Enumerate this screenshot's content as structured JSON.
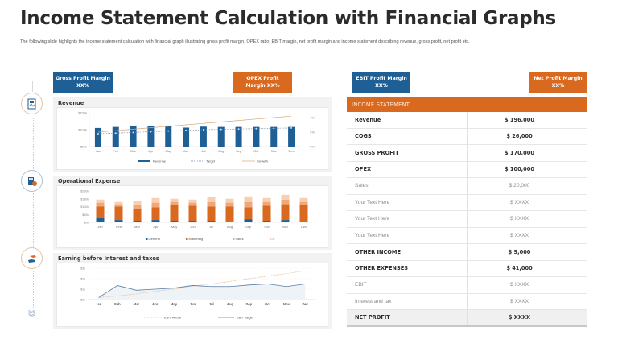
{
  "header": {
    "title": "Income Statement Calculation with Financial Graphs",
    "subtitle": "The following slide highlights the income statement calculation with financial graph illustrating gross profit margin, OPEX ratio, EBIT margin, net profit margin and income statement describing revenue, gross profit, net profit etc."
  },
  "kpis": [
    {
      "line1": "Gross Profit Margin",
      "line2": "XX%",
      "color": "#1e5f96"
    },
    {
      "line1": "OPEX Profit",
      "line2": "Margin XX%",
      "color": "#d9691e"
    },
    {
      "line1": "EBIT Profit Margin",
      "line2": "XX%",
      "color": "#1e5f96"
    },
    {
      "line1": "Net Profit Margin",
      "line2": "XX%",
      "color": "#d9691e"
    }
  ],
  "icons": [
    {
      "name": "document-chart-icon"
    },
    {
      "name": "calculator-coins-icon"
    },
    {
      "name": "hand-money-icon"
    },
    {
      "name": "chevrons-down-icon"
    }
  ],
  "panels": {
    "revenue": {
      "title": "Revenue"
    },
    "opex": {
      "title": "Operational Expense"
    },
    "ebit": {
      "title": "Earning before Interest and taxes"
    }
  },
  "chart_data": [
    {
      "type": "bar",
      "title": "Revenue",
      "categories": [
        "Jan",
        "Feb",
        "Mar",
        "Apr",
        "May",
        "Jun",
        "Jul",
        "Aug",
        "Sep",
        "Oct",
        "Nov",
        "Dec"
      ],
      "y_ticks": [
        "$50k",
        "$100k",
        "$150k"
      ],
      "y2_ticks": [
        "0%",
        "2%",
        "4%"
      ],
      "ylim": [
        50,
        150
      ],
      "y2lim": [
        0,
        4
      ],
      "series": [
        {
          "name": "Revenue",
          "kind": "bar",
          "color": "#1e5f96",
          "values": [
            105,
            108,
            112,
            110,
            112,
            106,
            109,
            108,
            108,
            108,
            108,
            108
          ]
        },
        {
          "name": "Target",
          "kind": "line-dotted",
          "color": "#6b8bb3",
          "values": [
            88,
            90,
            92,
            94,
            96,
            98,
            100,
            101,
            102,
            103,
            104,
            105
          ]
        },
        {
          "name": "Growth",
          "kind": "line",
          "axis": "y2",
          "color": "#d9a57a",
          "values": [
            2.0,
            2.2,
            2.4,
            2.6,
            2.8,
            3.0,
            3.2,
            3.4,
            3.6,
            3.8,
            4.0,
            4.2
          ]
        }
      ],
      "legend": [
        "Revenue",
        "Target",
        "Growth"
      ]
    },
    {
      "type": "bar",
      "stacked": true,
      "title": "Operational Expense",
      "categories": [
        "Jan",
        "Feb",
        "Mar",
        "Apr",
        "May",
        "Jun",
        "Jul",
        "Aug",
        "Sep",
        "Oct",
        "Nov",
        "Dec"
      ],
      "y_ticks": [
        "$0k",
        "$50k",
        "$100k",
        "$150k",
        "$200k"
      ],
      "ylim": [
        0,
        200
      ],
      "series": [
        {
          "name": "General",
          "color": "#1e5f96",
          "values": [
            30,
            15,
            10,
            15,
            10,
            10,
            10,
            5,
            20,
            10,
            15,
            5
          ]
        },
        {
          "name": "Marketing",
          "color": "#d9691e",
          "values": [
            70,
            85,
            75,
            80,
            100,
            95,
            90,
            95,
            75,
            95,
            100,
            105
          ]
        },
        {
          "name": "Sales",
          "color": "#f0a878",
          "values": [
            25,
            15,
            25,
            30,
            20,
            20,
            30,
            25,
            35,
            25,
            30,
            20
          ]
        },
        {
          "name": "IT",
          "color": "#f8cfb0",
          "values": [
            20,
            15,
            25,
            30,
            20,
            20,
            30,
            25,
            35,
            25,
            30,
            25
          ]
        }
      ],
      "legend": [
        "General",
        "Marketing",
        "Sales",
        "IT"
      ]
    },
    {
      "type": "line",
      "title": "Earning before Interest and taxes",
      "categories": [
        "Jan",
        "Feb",
        "Mar",
        "Apr",
        "May",
        "Jun",
        "Jul",
        "Aug",
        "Sep",
        "Oct",
        "Nov",
        "Dec"
      ],
      "y_ticks": [
        "$0k",
        "$1k",
        "$2k",
        "$3k"
      ],
      "ylim": [
        0,
        3
      ],
      "series": [
        {
          "name": "EBIT Actual",
          "kind": "line-dotted",
          "color": "#e8b08a",
          "values": [
            0.2,
            0.35,
            0.55,
            0.8,
            1.0,
            1.3,
            1.5,
            1.75,
            2.0,
            2.25,
            2.5,
            2.75
          ]
        },
        {
          "name": "EBIT Target",
          "kind": "line",
          "color": "#5a7ea8",
          "values": [
            0.2,
            1.35,
            0.9,
            1.0,
            1.1,
            1.35,
            1.25,
            1.25,
            1.4,
            1.5,
            1.25,
            1.5
          ]
        }
      ],
      "legend": [
        "EBIT Actual",
        "EBIT Target"
      ]
    }
  ],
  "income_statement": {
    "header": "INCOME STATEMENT",
    "rows": [
      {
        "label": "Revenue",
        "value": "$ 196,000",
        "style": "bold"
      },
      {
        "label": "COGS",
        "value": "$  26,000",
        "style": "bold"
      },
      {
        "label": "GROSS PROFIT",
        "value": "$ 170,000",
        "style": "bold"
      },
      {
        "label": "OPEX",
        "value": "$ 100,000",
        "style": "bold"
      },
      {
        "label": "Sales",
        "value": "$ 20,000",
        "style": "light"
      },
      {
        "label": "Your Text Here",
        "value": "$ XXXX",
        "style": "light"
      },
      {
        "label": "Your Text Here",
        "value": "$ XXXX",
        "style": "light"
      },
      {
        "label": "Your Text Here",
        "value": "$ XXXX",
        "style": "light"
      },
      {
        "label": "OTHER INCOME",
        "value": "$  9,000",
        "style": "bold"
      },
      {
        "label": "OTHER EXPENSES",
        "value": "$ 41,000",
        "style": "bold"
      },
      {
        "label": "EBIT",
        "value": "$ XXXX",
        "style": "light"
      },
      {
        "label": "Interest and tax",
        "value": "$ XXXX",
        "style": "light"
      },
      {
        "label": "NET PROFIT",
        "value": "$ XXXX",
        "style": "total"
      }
    ]
  }
}
